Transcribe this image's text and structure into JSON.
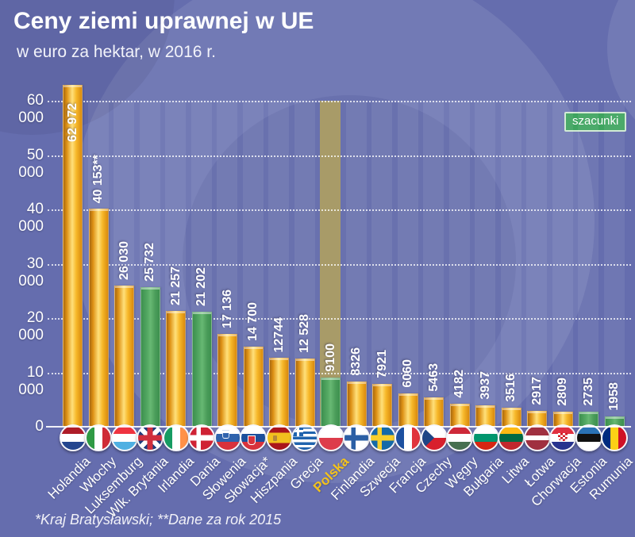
{
  "header": {
    "title": "Ceny ziemi uprawnej w UE",
    "subtitle": "w euro za hektar, w 2016 r."
  },
  "legend": {
    "badge_label": "szacunki",
    "badge_color": "#3ea45f"
  },
  "footer": {
    "note": "*Kraj Bratysławski; **Dane za rok 2015"
  },
  "colors": {
    "background": "#656dae",
    "bar_default": "#f0a81e",
    "bar_estimate": "#4a9c59",
    "highlight_band": "#ae9e62",
    "highlight_label": "#f2c21e",
    "text": "#ffffff"
  },
  "y_axis": {
    "tick_values": [
      0,
      10000,
      20000,
      30000,
      40000,
      50000,
      60000
    ],
    "tick_labels": [
      "0",
      "10 000",
      "20 000",
      "30 000",
      "40 000",
      "50 000",
      "60 000"
    ]
  },
  "chart_data": {
    "type": "bar",
    "title": "Ceny ziemi uprawnej w UE",
    "subtitle": "w euro za hektar, w 2016 r.",
    "unit": "euro za hektar",
    "ylim": [
      0,
      65000
    ],
    "yticks": [
      0,
      10000,
      20000,
      30000,
      40000,
      50000,
      60000
    ],
    "grid": "horizontal-dotted",
    "legend_badge": "szacunki",
    "highlight_category": "Polska",
    "estimated_categories": [
      "Wlk. Brytania",
      "Dania",
      "Polska",
      "Estonia",
      "Rumunia"
    ],
    "categories": [
      "Holandia",
      "Włochy",
      "Luksemburg",
      "Wlk. Brytania",
      "Irlandia",
      "Dania",
      "Słowenia",
      "Słowacja*",
      "Hiszpania",
      "Grecja",
      "Polska",
      "Finlandia",
      "Szwecja",
      "Francja",
      "Czechy",
      "Węgry",
      "Bułgaria",
      "Litwa",
      "Łotwa",
      "Chorwacja",
      "Estonia",
      "Rumunia"
    ],
    "values": [
      62972,
      40153,
      26030,
      25732,
      21257,
      21202,
      17136,
      14700,
      12744,
      12528,
      9100,
      8326,
      7921,
      6060,
      5463,
      4182,
      3937,
      3516,
      2917,
      2809,
      2735,
      1958
    ],
    "value_labels": [
      "62 972",
      "40 153**",
      "26 030",
      "25 732",
      "21 257",
      "21 202",
      "17 136",
      "14 700",
      "12744",
      "12 528",
      "9100",
      "8326",
      "7921",
      "6060",
      "5463",
      "4182",
      "3937",
      "3516",
      "2917",
      "2809",
      "2735",
      "1958"
    ],
    "bars": [
      {
        "category": "Holandia",
        "value": 62972,
        "label": "62 972",
        "style": "orange",
        "inside_label": true,
        "flag": {
          "type": "h",
          "colors": [
            "#ae1c28",
            "#ffffff",
            "#24468e"
          ]
        }
      },
      {
        "category": "Włochy",
        "value": 40153,
        "label": "40 153**",
        "style": "orange",
        "flag": {
          "type": "v",
          "colors": [
            "#2f9a44",
            "#ffffff",
            "#cf2b36"
          ]
        }
      },
      {
        "category": "Luksemburg",
        "value": 26030,
        "label": "26 030",
        "style": "orange",
        "flag": {
          "type": "h",
          "colors": [
            "#ef3340",
            "#ffffff",
            "#4fb0e2"
          ]
        }
      },
      {
        "category": "Wlk. Brytania",
        "value": 25732,
        "label": "25 732",
        "style": "green",
        "flag": {
          "type": "uk"
        }
      },
      {
        "category": "Irlandia",
        "value": 21257,
        "label": "21 257",
        "style": "orange",
        "flag": {
          "type": "v",
          "colors": [
            "#169b62",
            "#ffffff",
            "#ff9147"
          ]
        }
      },
      {
        "category": "Dania",
        "value": 21202,
        "label": "21 202",
        "style": "green",
        "flag": {
          "type": "nordic",
          "bg": "#cf2234",
          "cross": "#ffffff"
        }
      },
      {
        "category": "Słowenia",
        "value": 17136,
        "label": "17 136",
        "style": "orange",
        "flag": {
          "type": "h",
          "colors": [
            "#ffffff",
            "#2f63ad",
            "#d8323c"
          ],
          "crest": "si"
        }
      },
      {
        "category": "Słowacja*",
        "value": 14700,
        "label": "14 700",
        "style": "orange",
        "flag": {
          "type": "h",
          "colors": [
            "#ffffff",
            "#1c4f9c",
            "#d8323c"
          ],
          "crest": "sk"
        }
      },
      {
        "category": "Hiszpania",
        "value": 12744,
        "label": "12744",
        "style": "orange",
        "flag": {
          "type": "h",
          "colors": [
            "#aa151b",
            "#f2c01e",
            "#aa151b"
          ],
          "weights": [
            28,
            44,
            28
          ],
          "crest": "es"
        }
      },
      {
        "category": "Grecja",
        "value": 12528,
        "label": "12 528",
        "style": "orange",
        "flag": {
          "type": "gr"
        }
      },
      {
        "category": "Polska",
        "value": 9100,
        "label": "9100",
        "style": "green",
        "highlight": true,
        "flag": {
          "type": "h",
          "colors": [
            "#ffffff",
            "#dd3c4b"
          ],
          "weights": [
            50,
            50
          ]
        }
      },
      {
        "category": "Finlandia",
        "value": 8326,
        "label": "8326",
        "style": "orange",
        "flag": {
          "type": "nordic",
          "bg": "#ffffff",
          "cross": "#2b5fa5"
        }
      },
      {
        "category": "Szwecja",
        "value": 7921,
        "label": "7921",
        "style": "orange",
        "flag": {
          "type": "nordic",
          "bg": "#1569a8",
          "cross": "#f8cf2c"
        }
      },
      {
        "category": "Francja",
        "value": 6060,
        "label": "6060",
        "style": "orange",
        "flag": {
          "type": "v",
          "colors": [
            "#1d50a0",
            "#ffffff",
            "#e0333c"
          ]
        }
      },
      {
        "category": "Czechy",
        "value": 5463,
        "label": "5463",
        "style": "orange",
        "flag": {
          "type": "cz"
        }
      },
      {
        "category": "Węgry",
        "value": 4182,
        "label": "4182",
        "style": "orange",
        "flag": {
          "type": "h",
          "colors": [
            "#ce2939",
            "#ffffff",
            "#477050"
          ]
        }
      },
      {
        "category": "Bułgaria",
        "value": 3937,
        "label": "3937",
        "style": "orange",
        "flag": {
          "type": "h",
          "colors": [
            "#ffffff",
            "#00966e",
            "#d62612"
          ]
        }
      },
      {
        "category": "Litwa",
        "value": 3516,
        "label": "3516",
        "style": "orange",
        "flag": {
          "type": "h",
          "colors": [
            "#fdb913",
            "#006a44",
            "#c1272d"
          ]
        }
      },
      {
        "category": "Łotwa",
        "value": 2917,
        "label": "2917",
        "style": "orange",
        "flag": {
          "type": "h",
          "colors": [
            "#a03040",
            "#ffffff",
            "#a03040"
          ],
          "weights": [
            40,
            20,
            40
          ]
        }
      },
      {
        "category": "Chorwacja",
        "value": 2809,
        "label": "2809",
        "style": "orange",
        "flag": {
          "type": "h",
          "colors": [
            "#e03040",
            "#ffffff",
            "#27338e"
          ],
          "crest": "hr"
        }
      },
      {
        "category": "Estonia",
        "value": 2735,
        "label": "2735",
        "style": "green",
        "flag": {
          "type": "h",
          "colors": [
            "#2a72b5",
            "#111111",
            "#ffffff"
          ]
        }
      },
      {
        "category": "Rumunia",
        "value": 1958,
        "label": "1958",
        "style": "green",
        "flag": {
          "type": "v",
          "colors": [
            "#002b7f",
            "#fcd116",
            "#ce1126"
          ]
        }
      }
    ]
  }
}
